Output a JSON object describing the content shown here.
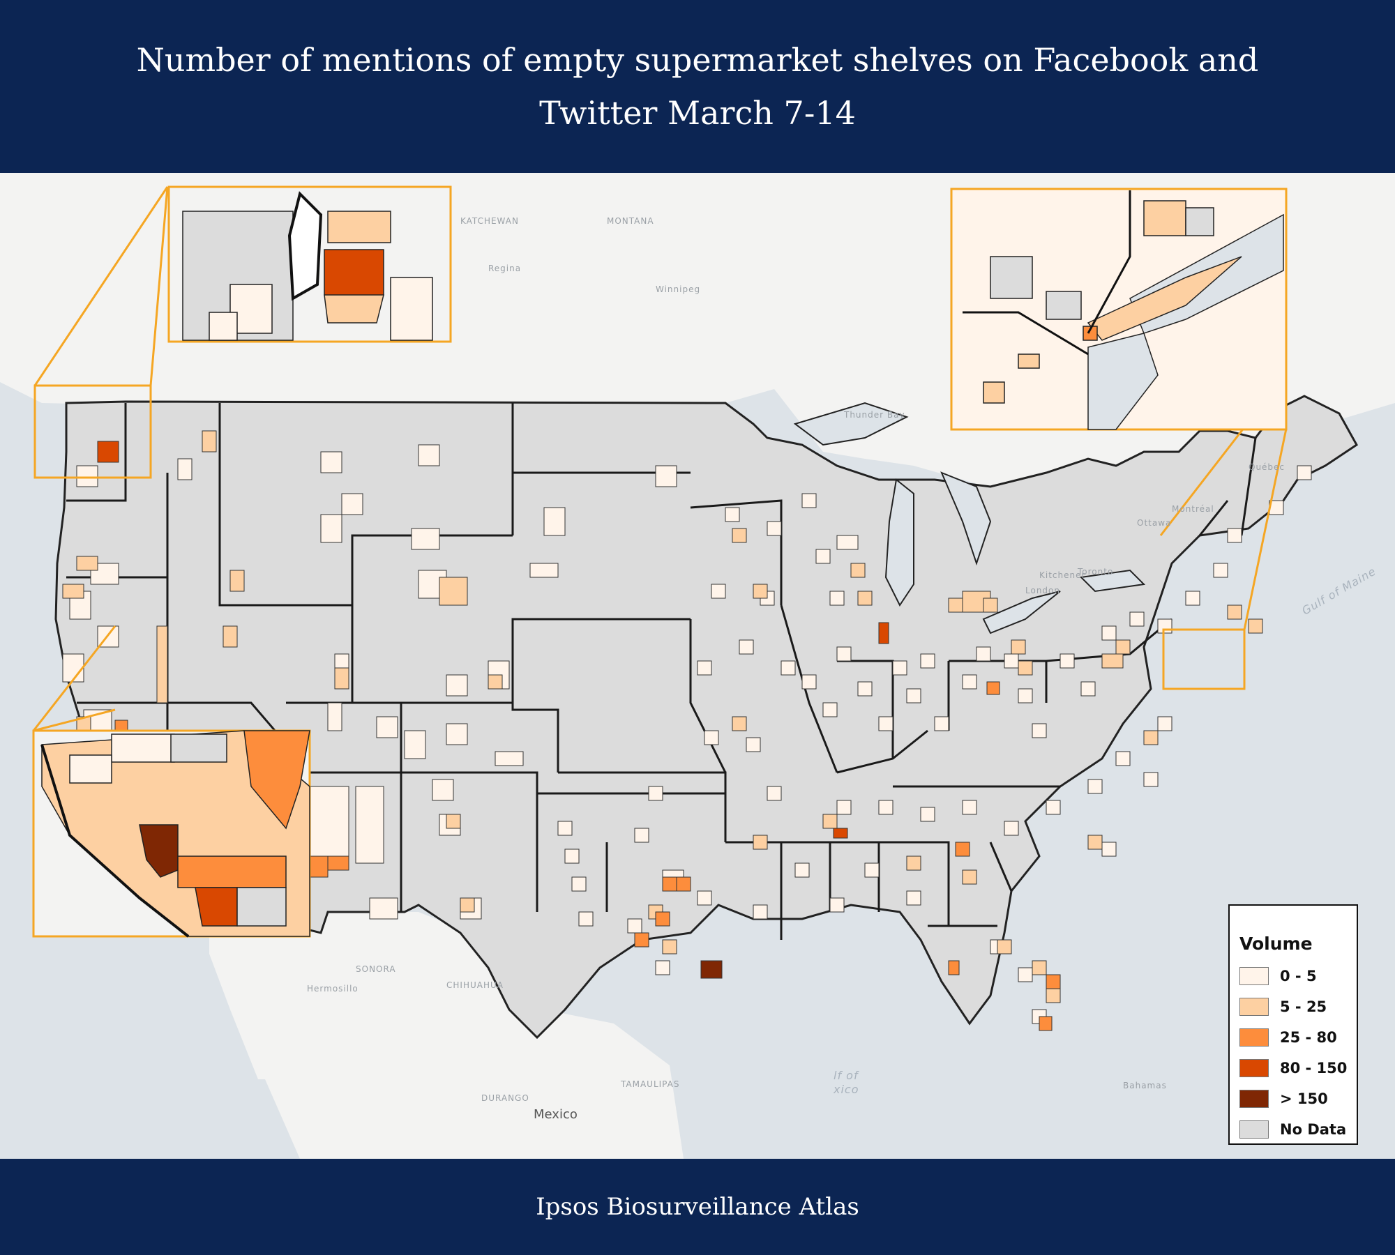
{
  "header": {
    "title": "Number of mentions of empty supermarket shelves on Facebook and Twitter March 7-14"
  },
  "footer": {
    "text": "Ipsos Biosurveillance Atlas"
  },
  "legend": {
    "title": "Volume",
    "items": [
      {
        "label": "0 - 5",
        "color": "#fff4ea"
      },
      {
        "label": "5 - 25",
        "color": "#fdd0a2"
      },
      {
        "label": "25 - 80",
        "color": "#fd8d3c"
      },
      {
        "label": "80 - 150",
        "color": "#d94801"
      },
      {
        "label": "> 150",
        "color": "#7f2704"
      },
      {
        "label": "No Data",
        "color": "#dcdcdc"
      }
    ]
  },
  "basemap_labels": {
    "mexico": "Mexico",
    "hermosillo": "Hermosillo",
    "sonora": "SONORA",
    "chihuahua": "CHIHUAHUA",
    "durango": "DURANGO",
    "tamaulipas": "TAMAULIPAS",
    "ottawa": "Ottawa",
    "montreal": "Montréal",
    "quebec": "Québec",
    "gulf_of_maine": "Gulf of Maine",
    "gulf_partial": "lf of",
    "gulf_partial2": "xico",
    "bahamas": "Bahamas",
    "regina": "Regina",
    "winnipeg": "Winnipeg",
    "thunder_bay": "Thunder Bay",
    "kitchener": "Kitchener",
    "toronto": "Toronto",
    "london": "London",
    "montana": "MONTANA",
    "saskatchewan": "KATCHEWAN"
  },
  "colors": {
    "header_bg": "#0c2553",
    "no_data": "#dcdcdc",
    "inset_frame": "#f5a623",
    "land": "#f3f3f2",
    "water": "#dde3e8"
  }
}
